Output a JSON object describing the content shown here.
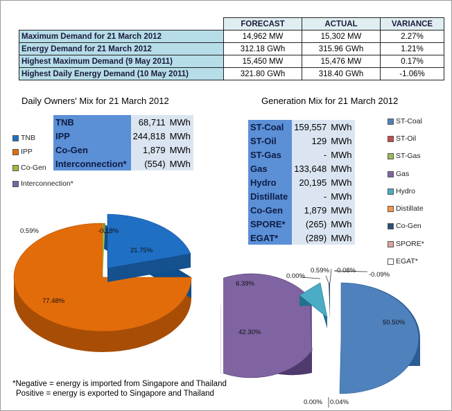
{
  "summary": {
    "headers": [
      "FORECAST",
      "ACTUAL",
      "VARIANCE"
    ],
    "rows": [
      {
        "label": "Maximum Demand for 21 March 2012",
        "forecast": "14,962 MW",
        "actual": "15,302 MW",
        "variance": "2.27%"
      },
      {
        "label": "Energy Demand for 21 March 2012",
        "forecast": "312.18 GWh",
        "actual": "315.96 GWh",
        "variance": "1.21%"
      },
      {
        "label": "Highest Maximum Demand (9 May 2011)",
        "forecast": "15,450 MW",
        "actual": "15,476 MW",
        "variance": "0.17%"
      },
      {
        "label": "Highest Daily Energy Demand (10 May 2011)",
        "forecast": "321.80 GWh",
        "actual": "318.40 GWh",
        "variance": "-1.06%"
      }
    ]
  },
  "owners_mix": {
    "title": "Daily Owners' Mix for 21 March 2012",
    "rows": [
      {
        "name": "TNB",
        "value": "68,711",
        "unit": "MWh"
      },
      {
        "name": "IPP",
        "value": "244,818",
        "unit": "MWh"
      },
      {
        "name": "Co-Gen",
        "value": "1,879",
        "unit": "MWh"
      },
      {
        "name": "Interconnection*",
        "value": "(554)",
        "unit": "MWh"
      }
    ],
    "legend": [
      {
        "name": "TNB",
        "color": "#1f6fc5"
      },
      {
        "name": "IPP",
        "color": "#e36c0a"
      },
      {
        "name": "Co-Gen",
        "color": "#a6b83b"
      },
      {
        "name": "Interconnection*",
        "color": "#7f62a6"
      }
    ]
  },
  "generation_mix": {
    "title": "Generation Mix for 21 March 2012",
    "rows": [
      {
        "name": "ST-Coal",
        "value": "159,557",
        "unit": "MWh"
      },
      {
        "name": "ST-Oil",
        "value": "129",
        "unit": "MWh"
      },
      {
        "name": "ST-Gas",
        "value": "-",
        "unit": "MWh"
      },
      {
        "name": "Gas",
        "value": "133,648",
        "unit": "MWh"
      },
      {
        "name": "Hydro",
        "value": "20,195",
        "unit": "MWh"
      },
      {
        "name": "Distillate",
        "value": "-",
        "unit": "MWh"
      },
      {
        "name": "Co-Gen",
        "value": "1,879",
        "unit": "MWh"
      },
      {
        "name": "SPORE*",
        "value": "(265)",
        "unit": "MWh"
      },
      {
        "name": "EGAT*",
        "value": "(289)",
        "unit": "MWh"
      }
    ],
    "legend": [
      {
        "name": "ST-Coal",
        "color": "#4f81bd"
      },
      {
        "name": "ST-Oil",
        "color": "#c0504d"
      },
      {
        "name": "ST-Gas",
        "color": "#9bbb59"
      },
      {
        "name": "Gas",
        "color": "#8064a2"
      },
      {
        "name": "Hydro",
        "color": "#4bacc6"
      },
      {
        "name": "Distillate",
        "color": "#f79646"
      },
      {
        "name": "Co-Gen",
        "color": "#2c4d75"
      },
      {
        "name": "SPORE*",
        "color": "#e0a39f"
      },
      {
        "name": "EGAT*",
        "color": "#ffffff"
      }
    ]
  },
  "notes": {
    "line1": "*Negative = energy is imported from Singapore and Thailand",
    "line2": "Positive = energy is exported to Singapore and Thailand"
  },
  "chart_data": [
    {
      "type": "pie",
      "title": "Daily Owners' Mix for 21 March 2012",
      "categories": [
        "TNB",
        "IPP",
        "Co-Gen",
        "Interconnection*"
      ],
      "values": [
        21.75,
        77.48,
        0.59,
        -0.18
      ],
      "labels": [
        "21.75%",
        "77.48%",
        "0.59%",
        "-0.18%"
      ],
      "legend": "left"
    },
    {
      "type": "pie",
      "title": "Generation Mix for 21 March 2012",
      "categories": [
        "ST-Coal",
        "ST-Oil",
        "ST-Gas",
        "Gas",
        "Hydro",
        "Distillate",
        "Co-Gen",
        "SPORE*",
        "EGAT*"
      ],
      "values": [
        50.5,
        0.04,
        0.0,
        42.3,
        6.39,
        0.0,
        0.59,
        -0.08,
        -0.09
      ],
      "labels": [
        "50.50%",
        "0.04%",
        "0.00%",
        "42.30%",
        "6.39%",
        "0.00%",
        "0.59%",
        "-0.08%",
        "-0.09%"
      ],
      "legend": "right"
    }
  ]
}
